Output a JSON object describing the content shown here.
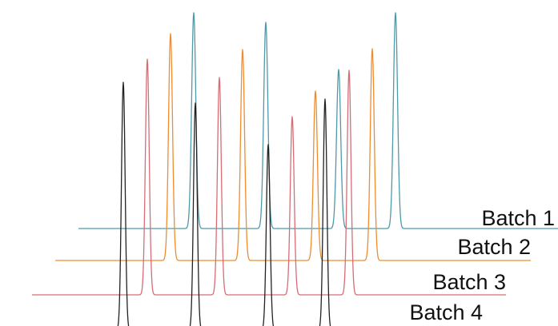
{
  "chart_data": {
    "type": "line",
    "title": "",
    "xlabel": "",
    "ylabel": "",
    "grid": false,
    "legend": "none",
    "series": [
      {
        "name": "Batch 1",
        "color": "#4e9aaa",
        "peaks": [
          {
            "x": 142,
            "height": 270
          },
          {
            "x": 232,
            "height": 258
          },
          {
            "x": 323,
            "height": 199
          },
          {
            "x": 394,
            "height": 270
          }
        ]
      },
      {
        "name": "Batch 2",
        "color": "#ee8d2e",
        "peaks": [
          {
            "x": 142,
            "height": 284
          },
          {
            "x": 232,
            "height": 264
          },
          {
            "x": 323,
            "height": 212
          },
          {
            "x": 394,
            "height": 265
          }
        ]
      },
      {
        "name": "Batch 3",
        "color": "#d66d74",
        "peaks": [
          {
            "x": 142,
            "height": 295
          },
          {
            "x": 232,
            "height": 272
          },
          {
            "x": 323,
            "height": 223
          },
          {
            "x": 394,
            "height": 281
          }
        ]
      },
      {
        "name": "Batch 4",
        "color": "#222222",
        "peaks": [
          {
            "x": 142,
            "height": 310
          },
          {
            "x": 232,
            "height": 284
          },
          {
            "x": 323,
            "height": 232
          },
          {
            "x": 394,
            "height": 289
          }
        ]
      }
    ]
  }
}
